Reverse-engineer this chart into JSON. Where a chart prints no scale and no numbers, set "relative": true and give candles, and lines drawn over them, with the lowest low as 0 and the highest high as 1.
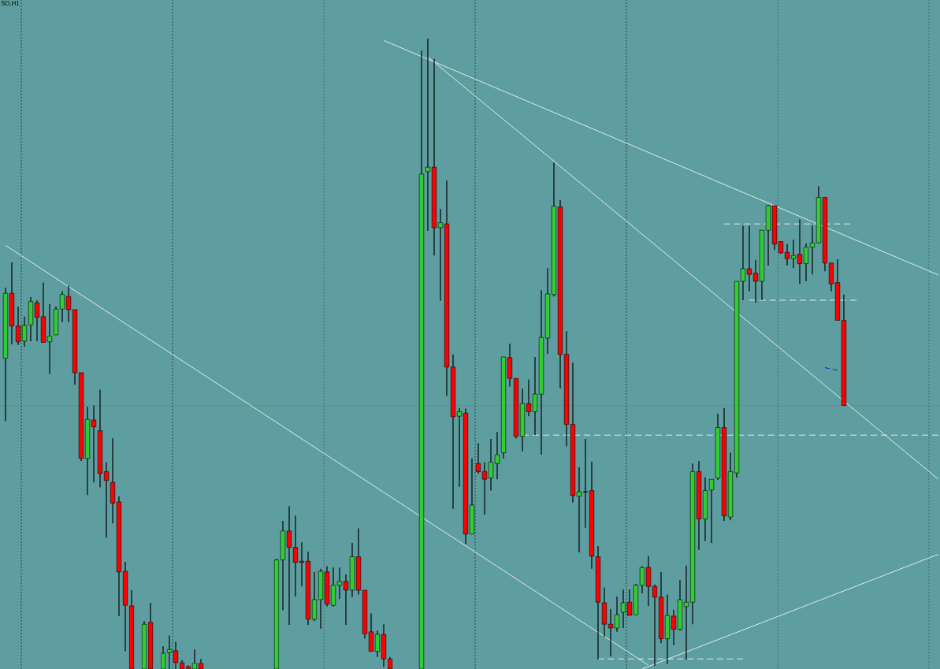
{
  "chart_data": {
    "type": "candlestick",
    "title": "SD,H1",
    "relative": true,
    "categories": [
      null,
      null,
      null,
      null,
      null,
      null,
      null,
      null,
      null,
      null,
      null,
      null,
      null,
      null,
      null,
      null,
      null,
      null,
      null,
      null,
      null,
      null,
      null,
      null,
      null,
      null,
      null,
      null,
      null,
      null,
      null,
      null,
      null,
      null,
      null,
      null,
      null,
      null,
      null,
      null,
      null,
      null,
      null,
      null,
      null,
      null,
      null,
      null,
      null,
      null,
      null,
      null,
      null,
      null,
      null,
      null,
      null,
      null,
      null,
      null,
      null,
      null,
      null,
      null,
      null,
      null,
      null,
      null,
      null,
      null,
      null,
      null,
      null,
      null,
      null,
      null,
      null,
      null,
      null,
      null,
      null,
      null,
      null,
      null,
      null,
      null,
      null,
      null,
      null,
      null,
      null,
      null,
      null,
      null,
      null,
      null,
      null,
      null,
      null,
      null,
      null,
      null,
      null,
      null,
      null,
      null,
      null,
      null,
      null,
      null,
      null,
      null,
      null,
      null,
      null,
      null,
      null,
      null,
      null,
      null,
      null,
      null,
      null,
      null,
      null,
      null,
      null,
      null,
      null,
      null,
      null,
      null,
      null,
      null,
      null,
      null,
      null,
      null,
      null,
      null,
      null,
      null,
      null,
      null,
      null,
      null,
      null,
      null,
      null
    ],
    "ohlc": [
      [
        0.493,
        0.605,
        0.393,
        0.596
      ],
      [
        0.596,
        0.645,
        0.515,
        0.544
      ],
      [
        0.544,
        0.575,
        0.514,
        0.519
      ],
      [
        0.52,
        0.559,
        0.511,
        0.545
      ],
      [
        0.546,
        0.59,
        0.52,
        0.583
      ],
      [
        0.581,
        0.585,
        0.52,
        0.558
      ],
      [
        0.559,
        0.613,
        0.518,
        0.518
      ],
      [
        0.519,
        0.579,
        0.468,
        0.528
      ],
      [
        0.53,
        0.575,
        0.53,
        0.571
      ],
      [
        0.571,
        0.599,
        0.55,
        0.594
      ],
      [
        0.591,
        0.608,
        0.55,
        0.57
      ],
      [
        0.57,
        0.57,
        0.451,
        0.47
      ],
      [
        0.47,
        0.47,
        0.33,
        0.334
      ],
      [
        0.334,
        0.416,
        0.276,
        0.396
      ],
      [
        0.395,
        0.418,
        0.296,
        0.384
      ],
      [
        0.378,
        0.443,
        0.288,
        0.31
      ],
      [
        0.313,
        0.328,
        0.208,
        0.299
      ],
      [
        0.296,
        0.366,
        0.231,
        0.263
      ],
      [
        0.265,
        0.274,
        0.084,
        0.154
      ],
      [
        0.155,
        0.17,
        0.028,
        0.101
      ],
      [
        0.1,
        0.125,
        0,
        0
      ],
      null,
      [
        0,
        0.076,
        0,
        0.071
      ],
      [
        0.074,
        0.105,
        0,
        0
      ],
      null,
      [
        0,
        0.036,
        0,
        0.025
      ],
      [
        0.026,
        0.053,
        0,
        0.031
      ],
      [
        0.029,
        0.043,
        0,
        0.01
      ],
      [
        0.01,
        0.014,
        0,
        0
      ],
      [
        0.004,
        0.006,
        0,
        0
      ],
      [
        0,
        0.031,
        0,
        0.009
      ],
      [
        0.009,
        0.016,
        0,
        0
      ],
      null,
      null,
      null,
      null,
      null,
      null,
      null,
      null,
      null,
      null,
      null,
      [
        0,
        0.175,
        0,
        0.173
      ],
      [
        0.173,
        0.235,
        0.093,
        0.219
      ],
      [
        0.219,
        0.258,
        0.07,
        0.193
      ],
      [
        0.193,
        0.243,
        0.115,
        0.169
      ],
      [
        0.171,
        0.201,
        0.131,
        0.169
      ],
      [
        0.171,
        0.186,
        0.07,
        0.079
      ],
      [
        0.079,
        0.154,
        0.076,
        0.11
      ],
      [
        0.11,
        0.159,
        0.064,
        0.155
      ],
      [
        0.154,
        0.163,
        0.099,
        0.103
      ],
      [
        0.101,
        0.161,
        0.099,
        0.133
      ],
      [
        0.133,
        0.161,
        0.111,
        0.139
      ],
      [
        0.139,
        0.15,
        0.07,
        0.125
      ],
      [
        0.125,
        0.2,
        0.114,
        0.178
      ],
      [
        0.178,
        0.223,
        0.118,
        0.125
      ],
      [
        0.125,
        0.125,
        0.048,
        0.056
      ],
      [
        0.059,
        0.088,
        0.028,
        0.028
      ],
      [
        0.028,
        0.061,
        0.019,
        0.055
      ],
      [
        0.055,
        0.071,
        0.003,
        0.016
      ],
      [
        0.016,
        0.019,
        0,
        0
      ],
      null,
      null,
      null,
      null,
      [
        0,
        0.981,
        0,
        0.785
      ],
      [
        0.789,
        1,
        0.695,
        0.796
      ],
      [
        0.796,
        0.968,
        0.656,
        0.7
      ],
      [
        0.7,
        0.73,
        0.584,
        0.708
      ],
      [
        0.706,
        0.775,
        0.433,
        0.479
      ],
      [
        0.479,
        0.499,
        0.254,
        0.4
      ],
      [
        0.401,
        0.414,
        0.289,
        0.408
      ],
      [
        0.406,
        0.413,
        0.198,
        0.214
      ],
      [
        0.214,
        0.334,
        0.214,
        0.26
      ],
      [
        0.326,
        0.358,
        0.31,
        0.313
      ],
      [
        0.313,
        0.328,
        0.245,
        0.301
      ],
      [
        0.303,
        0.365,
        0.283,
        0.328
      ],
      [
        0.326,
        0.376,
        0.301,
        0.34
      ],
      [
        0.343,
        0.495,
        0.334,
        0.495
      ],
      [
        0.494,
        0.516,
        0.448,
        0.461
      ],
      [
        0.461,
        0.461,
        0.366,
        0.369
      ],
      [
        0.369,
        0.445,
        0.345,
        0.421
      ],
      [
        0.421,
        0.459,
        0.401,
        0.408
      ],
      [
        0.408,
        0.495,
        0.371,
        0.436
      ],
      [
        0.436,
        0.601,
        0.34,
        0.526
      ],
      [
        0.525,
        0.636,
        0.5,
        0.595
      ],
      [
        0.594,
        0.803,
        0.591,
        0.734
      ],
      [
        0.733,
        0.744,
        0.445,
        0.499
      ],
      [
        0.499,
        0.536,
        0.353,
        0.388
      ],
      [
        0.388,
        0.486,
        0.264,
        0.275
      ],
      [
        0.274,
        0.32,
        0.185,
        0.281
      ],
      [
        0.281,
        0.365,
        0.224,
        0.281
      ],
      [
        0.283,
        0.329,
        0.159,
        0.179
      ],
      [
        0.178,
        0.195,
        0.015,
        0.106
      ],
      [
        0.105,
        0.129,
        0.051,
        0.071
      ],
      [
        0.071,
        0.095,
        0.02,
        0.065
      ],
      [
        0.065,
        0.115,
        0.059,
        0.086
      ],
      [
        0.09,
        0.126,
        0.065,
        0.105
      ],
      [
        0.106,
        0.126,
        0.085,
        0.085
      ],
      [
        0.086,
        0.135,
        0.086,
        0.133
      ],
      [
        0.133,
        0.163,
        0.12,
        0.161
      ],
      [
        0.161,
        0.179,
        0.1,
        0.131
      ],
      [
        0.131,
        0.134,
        0.005,
        0.114
      ],
      [
        0.114,
        0.154,
        0.041,
        0.048
      ],
      [
        0.048,
        0.118,
        0.008,
        0.085
      ],
      [
        0.084,
        0.094,
        0.038,
        0.063
      ],
      [
        0.063,
        0.141,
        0.061,
        0.11
      ],
      [
        0.099,
        0.164,
        0.015,
        0.106
      ],
      [
        0.106,
        0.326,
        0.071,
        0.313
      ],
      [
        0.313,
        0.33,
        0.189,
        0.238
      ],
      [
        0.238,
        0.304,
        0.203,
        0.283
      ],
      [
        0.284,
        0.301,
        0.2,
        0.301
      ],
      [
        0.303,
        0.405,
        0.3,
        0.383
      ],
      [
        0.383,
        0.414,
        0.235,
        0.243
      ],
      [
        0.241,
        0.343,
        0.236,
        0.313
      ],
      [
        0.311,
        0.615,
        0.303,
        0.615
      ],
      [
        0.615,
        0.703,
        0.585,
        0.635
      ],
      [
        0.635,
        0.703,
        0.599,
        0.626
      ],
      [
        0.628,
        0.649,
        0.581,
        0.615
      ],
      [
        0.615,
        0.696,
        0.585,
        0.696
      ],
      [
        0.696,
        0.736,
        0.64,
        0.735
      ],
      [
        0.735,
        0.735,
        0.665,
        0.674
      ],
      [
        0.678,
        0.678,
        0.659,
        0.66
      ],
      [
        0.661,
        0.674,
        0.64,
        0.651
      ],
      [
        0.651,
        0.681,
        0.636,
        0.656
      ],
      [
        0.658,
        0.713,
        0.611,
        0.643
      ],
      [
        0.643,
        0.675,
        0.615,
        0.669
      ],
      [
        0.669,
        0.703,
        0.626,
        0.676
      ],
      [
        0.676,
        0.766,
        0.675,
        0.748
      ],
      [
        0.748,
        0.748,
        0.631,
        0.644
      ],
      [
        0.644,
        0.644,
        0.599,
        0.611
      ],
      [
        0.613,
        0.65,
        0.553,
        0.553
      ],
      [
        0.553,
        0.594,
        0.418,
        0.418
      ],
      null,
      null,
      null,
      null,
      null,
      null,
      null,
      null,
      null,
      null,
      null,
      null,
      null,
      null,
      null
    ],
    "colors": [
      "#32cd32",
      "#ff0000",
      "#ff0000",
      "#32cd32",
      "#32cd32",
      "#ff0000",
      "#ff0000",
      "#32cd32",
      "#32cd32",
      "#32cd32",
      "#ff0000",
      "#ff0000",
      "#ff0000",
      "#32cd32",
      "#ff0000",
      "#ff0000",
      "#ff0000",
      "#ff0000",
      "#ff0000",
      "#ff0000",
      "#ff0000",
      null,
      "#32cd32",
      "#ff0000",
      null,
      "#32cd32",
      "#32cd32",
      "#ff0000",
      "#ff0000",
      "#ff0000",
      "#32cd32",
      "#ff0000",
      null,
      null,
      null,
      null,
      null,
      null,
      null,
      null,
      null,
      null,
      null,
      "#32cd32",
      "#32cd32",
      "#ff0000",
      "#ff0000",
      "#ff0000",
      "#ff0000",
      "#32cd32",
      "#32cd32",
      "#ff0000",
      "#32cd32",
      "#32cd32",
      "#ff0000",
      "#32cd32",
      "#ff0000",
      "#ff0000",
      "#ff0000",
      "#32cd32",
      "#ff0000",
      "#ff0000",
      null,
      null,
      null,
      null,
      "#32cd32",
      "#32cd32",
      "#ff0000",
      "#32cd32",
      "#ff0000",
      "#ff0000",
      "#32cd32",
      "#ff0000",
      "#32cd32",
      "#ff0000",
      "#ff0000",
      "#32cd32",
      "#32cd32",
      "#32cd32",
      "#ff0000",
      "#ff0000",
      "#32cd32",
      "#ff0000",
      "#32cd32",
      "#32cd32",
      "#32cd32",
      "#32cd32",
      "#ff0000",
      "#ff0000",
      "#ff0000",
      "#32cd32",
      "#000000",
      "#ff0000",
      "#ff0000",
      "#ff0000",
      "#ff0000",
      "#32cd32",
      "#32cd32",
      "#ff0000",
      "#32cd32",
      "#32cd32",
      "#ff0000",
      "#ff0000",
      "#ff0000",
      "#32cd32",
      "#ff0000",
      "#32cd32",
      "#32cd32",
      "#32cd32",
      "#ff0000",
      "#32cd32",
      "#32cd32",
      "#32cd32",
      "#ff0000",
      "#32cd32",
      "#32cd32",
      "#32cd32",
      "#ff0000",
      "#ff0000",
      "#32cd32",
      "#32cd32",
      "#ff0000",
      "#ff0000",
      "#ff0000",
      "#32cd32",
      "#ff0000",
      "#32cd32",
      "#32cd32",
      "#32cd32",
      "#ff0000",
      "#ff0000",
      "#ff0000",
      "#ff0000",
      null,
      null,
      null,
      null,
      null,
      null,
      null,
      null,
      null,
      null,
      null,
      null,
      null,
      null,
      null
    ],
    "ref_lines": [
      {
        "axis": "y",
        "value": 0.418,
        "color": "#cc6633"
      }
    ],
    "series": [
      {
        "type": "line",
        "color": "#ffffff",
        "line_style": "solid",
        "values": [
          null,
          null,
          null,
          null,
          null,
          null,
          null,
          null,
          null,
          null,
          null,
          null,
          null,
          null,
          null,
          null,
          null,
          null,
          null,
          null,
          null,
          null,
          null,
          null,
          null,
          null,
          null,
          null,
          null,
          null,
          null,
          null,
          null,
          null,
          null,
          null,
          null,
          null,
          null,
          null,
          null,
          null,
          null,
          null,
          null,
          null,
          null,
          null,
          null,
          null,
          null,
          null,
          null,
          null,
          null,
          null,
          null,
          null,
          null,
          null,
          0.997,
          null,
          null,
          null,
          null,
          null,
          null,
          null,
          null,
          null,
          null,
          null,
          null,
          null,
          null,
          null,
          null,
          null,
          null,
          null,
          null,
          null,
          null,
          null,
          null,
          null,
          null,
          null,
          null,
          null,
          null,
          null,
          null,
          null,
          null,
          null,
          null,
          null,
          null,
          null,
          null,
          null,
          null,
          null,
          null,
          null,
          null,
          null,
          null,
          null,
          null,
          null,
          null,
          null,
          null,
          null,
          null,
          null,
          null,
          null,
          null,
          null,
          null,
          null,
          null,
          null,
          null,
          null,
          null,
          null,
          null,
          null,
          null,
          null,
          null,
          null,
          null,
          null,
          null,
          null,
          null,
          null,
          null,
          null,
          null,
          null,
          null,
          null,
          0.625
        ]
      },
      {
        "type": "line",
        "color": "#ffffff",
        "line_style": "solid",
        "values": [
          0.672,
          null,
          null,
          null,
          null,
          null,
          null,
          null,
          null,
          null,
          null,
          null,
          null,
          null,
          null,
          null,
          null,
          null,
          null,
          null,
          null,
          null,
          null,
          null,
          null,
          null,
          null,
          null,
          null,
          null,
          null,
          null,
          null,
          null,
          null,
          null,
          null,
          null,
          null,
          null,
          null,
          null,
          null,
          null,
          null,
          null,
          null,
          null,
          null,
          null,
          null,
          null,
          null,
          null,
          null,
          null,
          null,
          null,
          null,
          null,
          null,
          null,
          null,
          null,
          null,
          null,
          null,
          null,
          null,
          null,
          null,
          null,
          null,
          null,
          null,
          null,
          null,
          null,
          null,
          null,
          null,
          null,
          null,
          null,
          null,
          null,
          null,
          null,
          null,
          null,
          null,
          null,
          null,
          null,
          null,
          null,
          null,
          null,
          null,
          null,
          null,
          null,
          0.006,
          null,
          null,
          null,
          null,
          null,
          null,
          null,
          null,
          null,
          null,
          null,
          null,
          null,
          null,
          null,
          null,
          null,
          null,
          null,
          null,
          null,
          null,
          null,
          null,
          null,
          null,
          null,
          null,
          null,
          null,
          null,
          null,
          null,
          null,
          null,
          null,
          null,
          null,
          null,
          null,
          null,
          null,
          null,
          null,
          null,
          null
        ]
      },
      {
        "type": "line",
        "color": "#ffffff",
        "line_style": "solid",
        "values": [
          null,
          null,
          null,
          null,
          null,
          null,
          null,
          null,
          null,
          null,
          null,
          null,
          null,
          null,
          null,
          null,
          null,
          null,
          null,
          null,
          null,
          null,
          null,
          null,
          null,
          null,
          null,
          null,
          null,
          null,
          null,
          null,
          null,
          null,
          null,
          null,
          null,
          null,
          null,
          null,
          null,
          null,
          null,
          null,
          null,
          null,
          null,
          null,
          null,
          null,
          null,
          null,
          null,
          null,
          null,
          null,
          null,
          null,
          null,
          null,
          null,
          null,
          null,
          null,
          null,
          null,
          null,
          0.971,
          null,
          null,
          null,
          null,
          null,
          null,
          null,
          null,
          null,
          null,
          null,
          null,
          null,
          null,
          null,
          null,
          null,
          null,
          null,
          null,
          null,
          null,
          null,
          null,
          null,
          null,
          null,
          null,
          null,
          null,
          null,
          null,
          null,
          null,
          null,
          null,
          null,
          null,
          null,
          null,
          null,
          null,
          null,
          null,
          null,
          null,
          null,
          null,
          null,
          null,
          null,
          null,
          null,
          null,
          null,
          null,
          null,
          null,
          null,
          null,
          null,
          null,
          null,
          null,
          null,
          null,
          null,
          null,
          null,
          null,
          null,
          null,
          null,
          null,
          null,
          null,
          null,
          null,
          null,
          null,
          0.301
        ]
      },
      {
        "type": "line",
        "color": "#ffffff",
        "line_style": "solid",
        "values": [
          null,
          null,
          null,
          null,
          null,
          null,
          null,
          null,
          null,
          null,
          null,
          null,
          null,
          null,
          null,
          null,
          null,
          null,
          null,
          null,
          null,
          null,
          null,
          null,
          null,
          null,
          null,
          null,
          null,
          null,
          null,
          null,
          null,
          null,
          null,
          null,
          null,
          null,
          null,
          null,
          null,
          null,
          null,
          null,
          null,
          null,
          null,
          null,
          null,
          null,
          null,
          null,
          null,
          null,
          null,
          null,
          null,
          null,
          null,
          null,
          null,
          null,
          null,
          null,
          null,
          null,
          null,
          null,
          null,
          null,
          null,
          null,
          null,
          null,
          null,
          null,
          null,
          null,
          null,
          null,
          null,
          null,
          null,
          null,
          null,
          null,
          null,
          null,
          null,
          null,
          null,
          null,
          null,
          null,
          null,
          null,
          null,
          null,
          null,
          null,
          null,
          0,
          null,
          null,
          null,
          null,
          null,
          null,
          null,
          null,
          null,
          null,
          null,
          null,
          null,
          null,
          null,
          null,
          null,
          null,
          null,
          null,
          null,
          null,
          null,
          null,
          null,
          null,
          null,
          null,
          null,
          null,
          null,
          null,
          null,
          null,
          null,
          null,
          null,
          null,
          null,
          null,
          null,
          null,
          null,
          null,
          null,
          null,
          0.182
        ]
      },
      {
        "type": "line",
        "color": "#ffffff",
        "line_style": "dashed",
        "values": [
          null,
          null,
          null,
          null,
          null,
          null,
          null,
          null,
          null,
          null,
          null,
          null,
          null,
          null,
          null,
          null,
          null,
          null,
          null,
          null,
          null,
          null,
          null,
          null,
          null,
          null,
          null,
          null,
          null,
          null,
          null,
          null,
          null,
          null,
          null,
          null,
          null,
          null,
          null,
          null,
          null,
          null,
          null,
          null,
          null,
          null,
          null,
          null,
          null,
          null,
          null,
          null,
          null,
          null,
          null,
          null,
          null,
          null,
          null,
          null,
          null,
          null,
          null,
          null,
          null,
          null,
          null,
          null,
          null,
          null,
          null,
          null,
          null,
          null,
          null,
          null,
          null,
          null,
          null,
          null,
          null,
          null,
          null,
          null,
          null,
          null,
          null,
          null,
          null,
          null,
          null,
          null,
          null,
          null,
          null,
          null,
          null,
          null,
          null,
          null,
          null,
          null,
          null,
          null,
          null,
          null,
          null,
          null,
          null,
          null,
          null,
          null,
          null,
          null,
          0.706,
          null,
          null,
          null,
          null,
          null,
          null,
          null,
          null,
          null,
          null,
          null,
          null,
          null,
          null,
          null,
          null,
          null,
          null,
          null,
          0.706,
          null,
          null,
          null,
          null,
          null,
          null,
          null,
          null,
          null,
          null,
          null,
          null,
          null,
          null
        ]
      },
      {
        "type": "line",
        "color": "#ffffff",
        "line_style": "dashed",
        "values": [
          null,
          null,
          null,
          null,
          null,
          null,
          null,
          null,
          null,
          null,
          null,
          null,
          null,
          null,
          null,
          null,
          null,
          null,
          null,
          null,
          null,
          null,
          null,
          null,
          null,
          null,
          null,
          null,
          null,
          null,
          null,
          null,
          null,
          null,
          null,
          null,
          null,
          null,
          null,
          null,
          null,
          null,
          null,
          null,
          null,
          null,
          null,
          null,
          null,
          null,
          null,
          null,
          null,
          null,
          null,
          null,
          null,
          null,
          null,
          null,
          null,
          null,
          null,
          null,
          null,
          null,
          null,
          null,
          null,
          null,
          null,
          null,
          null,
          null,
          null,
          null,
          null,
          null,
          null,
          null,
          null,
          null,
          null,
          null,
          null,
          null,
          null,
          null,
          null,
          null,
          null,
          null,
          null,
          null,
          null,
          null,
          null,
          null,
          null,
          null,
          null,
          null,
          null,
          null,
          null,
          null,
          null,
          null,
          null,
          null,
          null,
          null,
          null,
          null,
          null,
          null,
          null,
          null,
          0.585,
          null,
          null,
          null,
          null,
          null,
          null,
          null,
          null,
          null,
          null,
          null,
          null,
          null,
          null,
          null,
          null,
          0.585,
          null,
          null,
          null,
          null,
          null,
          null,
          null,
          null,
          null,
          null,
          null,
          null,
          null
        ]
      },
      {
        "type": "line",
        "color": "#ffffff",
        "line_style": "dashed",
        "values": [
          null,
          null,
          null,
          null,
          null,
          null,
          null,
          null,
          null,
          null,
          null,
          null,
          null,
          null,
          null,
          null,
          null,
          null,
          null,
          null,
          null,
          null,
          null,
          null,
          null,
          null,
          null,
          null,
          null,
          null,
          null,
          null,
          null,
          null,
          null,
          null,
          null,
          null,
          null,
          null,
          null,
          null,
          null,
          null,
          null,
          null,
          null,
          null,
          null,
          null,
          null,
          null,
          null,
          null,
          null,
          null,
          null,
          null,
          null,
          null,
          null,
          null,
          null,
          null,
          null,
          null,
          null,
          null,
          null,
          null,
          null,
          null,
          null,
          null,
          null,
          null,
          null,
          null,
          null,
          null,
          null,
          null,
          0.371,
          null,
          null,
          null,
          null,
          null,
          null,
          null,
          null,
          null,
          null,
          null,
          null,
          null,
          null,
          null,
          null,
          null,
          null,
          null,
          null,
          null,
          null,
          null,
          null,
          null,
          null,
          null,
          null,
          null,
          null,
          null,
          null,
          null,
          null,
          null,
          null,
          null,
          null,
          null,
          null,
          null,
          null,
          null,
          null,
          null,
          null,
          null,
          null,
          null,
          null,
          null,
          null,
          null,
          null,
          null,
          null,
          null,
          null,
          null,
          null,
          null,
          null,
          null,
          null,
          null,
          0.371
        ]
      },
      {
        "type": "line",
        "color": "#ffffff",
        "line_style": "dashed",
        "values": [
          null,
          null,
          null,
          null,
          null,
          null,
          null,
          null,
          null,
          null,
          null,
          null,
          null,
          null,
          null,
          null,
          null,
          null,
          null,
          null,
          null,
          null,
          null,
          null,
          null,
          null,
          null,
          null,
          null,
          null,
          null,
          null,
          null,
          null,
          null,
          null,
          null,
          null,
          null,
          null,
          null,
          null,
          null,
          null,
          null,
          null,
          null,
          null,
          null,
          null,
          null,
          null,
          null,
          null,
          null,
          null,
          null,
          null,
          null,
          null,
          null,
          null,
          null,
          null,
          null,
          null,
          null,
          null,
          null,
          null,
          null,
          null,
          null,
          null,
          null,
          null,
          null,
          null,
          null,
          null,
          null,
          null,
          null,
          null,
          null,
          null,
          null,
          null,
          null,
          null,
          null,
          null,
          null,
          null,
          0.016,
          null,
          null,
          null,
          null,
          null,
          null,
          null,
          null,
          null,
          null,
          null,
          null,
          null,
          null,
          null,
          null,
          null,
          null,
          null,
          null,
          null,
          null,
          0.016,
          null,
          null,
          null,
          null,
          null,
          null,
          null,
          null,
          null,
          null,
          null,
          null,
          null,
          null,
          null,
          null,
          null,
          null,
          null,
          null,
          null,
          null,
          null,
          null,
          null,
          null,
          null,
          null,
          null,
          null,
          null
        ]
      },
      {
        "type": "line",
        "color": "#0000cc",
        "line_style": "dashed",
        "values": [
          null,
          null,
          null,
          null,
          null,
          null,
          null,
          null,
          null,
          null,
          null,
          null,
          null,
          null,
          null,
          null,
          null,
          null,
          null,
          null,
          null,
          null,
          null,
          null,
          null,
          null,
          null,
          null,
          null,
          null,
          null,
          null,
          null,
          null,
          null,
          null,
          null,
          null,
          null,
          null,
          null,
          null,
          null,
          null,
          null,
          null,
          null,
          null,
          null,
          null,
          null,
          null,
          null,
          null,
          null,
          null,
          null,
          null,
          null,
          null,
          null,
          null,
          null,
          null,
          null,
          null,
          null,
          null,
          null,
          null,
          null,
          null,
          null,
          null,
          null,
          null,
          null,
          null,
          null,
          null,
          null,
          null,
          null,
          null,
          null,
          null,
          null,
          null,
          null,
          null,
          null,
          null,
          null,
          null,
          null,
          null,
          null,
          null,
          null,
          null,
          null,
          null,
          null,
          null,
          null,
          null,
          null,
          null,
          null,
          null,
          null,
          null,
          null,
          null,
          null,
          null,
          null,
          null,
          null,
          null,
          null,
          null,
          null,
          null,
          null,
          null,
          null,
          null,
          null,
          null,
          0.478,
          null,
          0.474,
          null,
          null,
          null,
          null,
          null,
          null,
          null,
          null,
          null,
          null,
          null,
          null,
          null,
          null,
          null,
          null
        ]
      }
    ]
  }
}
